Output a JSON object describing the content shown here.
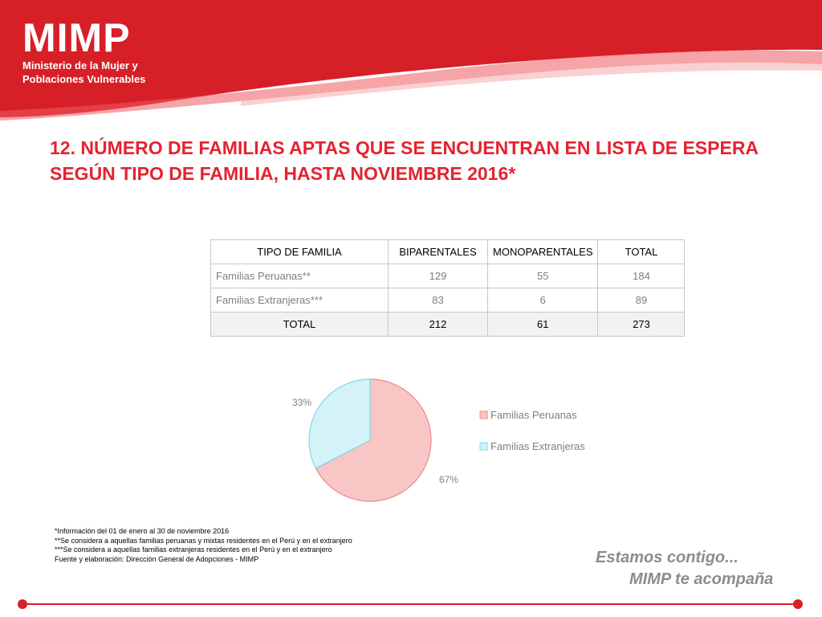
{
  "logo": {
    "brand": "MIMP",
    "line1": "Ministerio de la Mujer y",
    "line2": "Poblaciones Vulnerables"
  },
  "title_line1": "12. NÚMERO DE FAMILIAS APTAS QUE SE ENCUENTRAN EN LISTA DE ESPERA",
  "title_line2": "SEGÚN TIPO DE FAMILIA, HASTA NOVIEMBRE 2016*",
  "table": {
    "headers": [
      "TIPO DE FAMILIA",
      "BIPARENTALES",
      "MONOPARENTALES",
      "TOTAL"
    ],
    "rows": [
      [
        "Familias Peruanas**",
        "129",
        "55",
        "184"
      ],
      [
        "Familias Extranjeras***",
        "83",
        "6",
        "89"
      ]
    ],
    "total": [
      "TOTAL",
      "212",
      "61",
      "273"
    ]
  },
  "chart_data": {
    "type": "pie",
    "categories": [
      "Familias Peruanas",
      "Familias Extranjeras"
    ],
    "values": [
      184,
      89
    ],
    "labels": [
      "67%",
      "33%"
    ],
    "colors": [
      "#f9c6c6",
      "#d3f3f9"
    ],
    "borders": [
      "#e88a8a",
      "#7fd8e8"
    ],
    "legend_position": "right"
  },
  "notes": [
    "*Información del 01 de enero al 30 de noviembre 2016",
    "**Se considera a aquellas familias peruanas y mixtas residentes en el Perú y en el extranjero",
    "***Se considera a aquellas familias extranjeras residentes en el Perú y en el extranjero",
    "Fuente y elaboración: Dirección General de Adopciones - MIMP"
  ],
  "slogan": {
    "line1": "Estamos contigo...",
    "line2": "MIMP te acompaña"
  },
  "colors": {
    "brand_red": "#d71f28",
    "title_red": "#e52230"
  }
}
